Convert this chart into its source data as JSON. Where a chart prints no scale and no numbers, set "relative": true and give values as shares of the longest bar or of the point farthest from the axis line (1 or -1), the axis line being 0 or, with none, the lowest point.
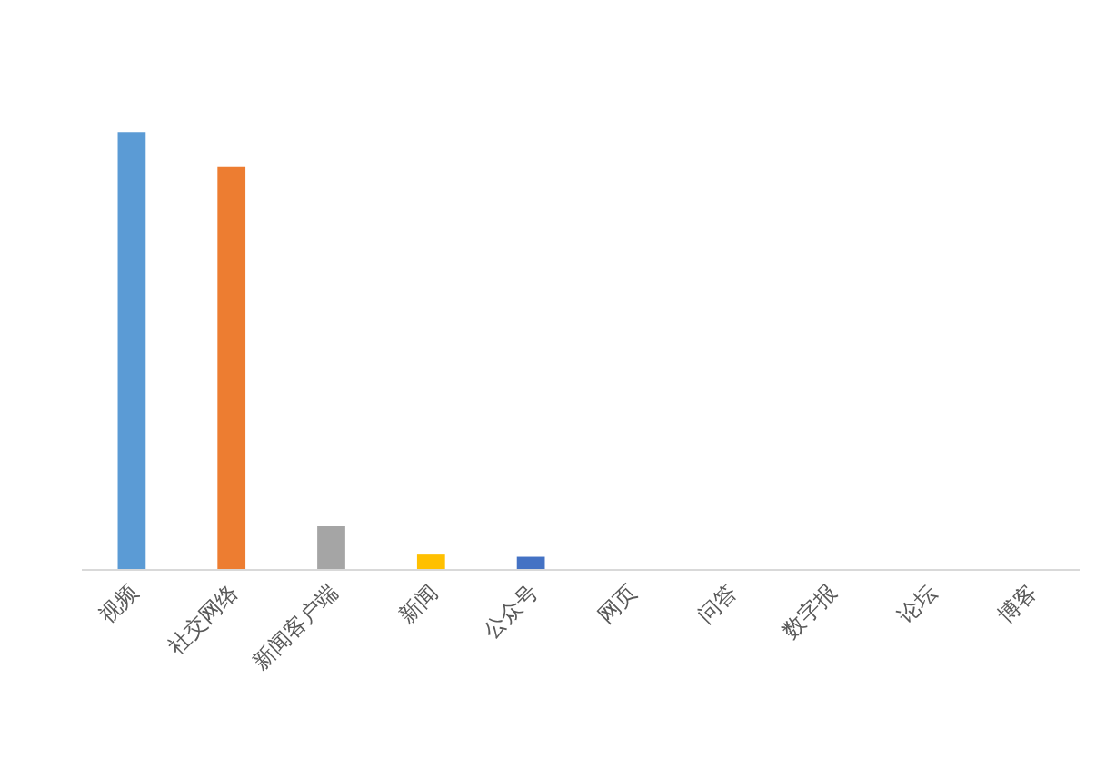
{
  "chart_data": {
    "type": "bar",
    "relative": true,
    "categories": [
      "视频",
      "社交网络",
      "新闻客户端",
      "新闻",
      "公众号",
      "网页",
      "问答",
      "数字报",
      "论坛",
      "博客"
    ],
    "values": [
      1,
      0.92,
      0.098,
      0.033,
      0.028,
      0,
      0,
      0,
      0,
      0
    ],
    "colors": [
      "#5b9bd5",
      "#ed7d31",
      "#a5a5a5",
      "#ffc000",
      "#4472c4",
      null,
      null,
      null,
      null,
      null
    ]
  }
}
